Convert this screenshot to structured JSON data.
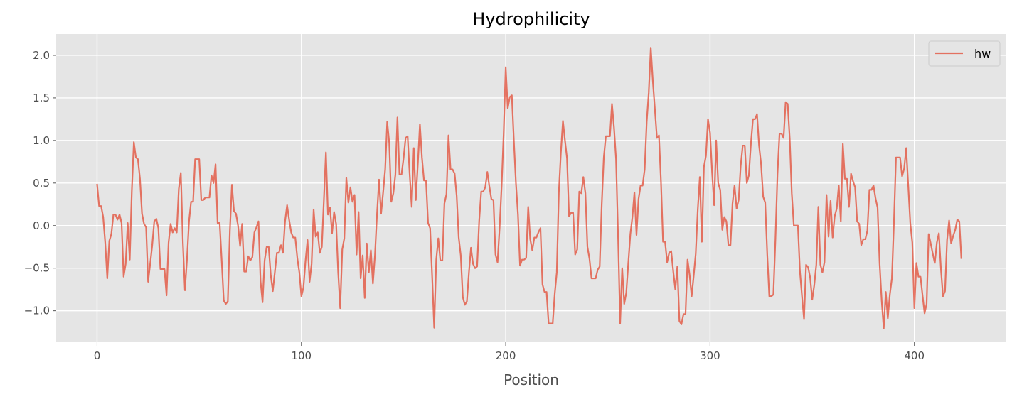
{
  "chart_data": {
    "type": "line",
    "title": "Hydrophilicity",
    "xlabel": "Position",
    "ylabel": "",
    "xlim": [
      -20,
      445
    ],
    "ylim": [
      -1.37,
      2.25
    ],
    "xticks": [
      0,
      100,
      200,
      300,
      400
    ],
    "xtick_labels": [
      "0",
      "100",
      "200",
      "300",
      "400"
    ],
    "yticks": [
      -1.0,
      -0.5,
      0.0,
      0.5,
      1.0,
      1.5,
      2.0
    ],
    "ytick_labels": [
      "−1.0",
      "−0.5",
      "0.0",
      "0.5",
      "1.0",
      "1.5",
      "2.0"
    ],
    "grid": true,
    "legend": {
      "position": "top-right",
      "entries": [
        "hw"
      ]
    },
    "colors": {
      "plot_bg": "#e5e5e5",
      "grid": "#ffffff",
      "series": "#e24a33"
    },
    "series": [
      {
        "name": "hw",
        "x_start": 0,
        "x_step": 1,
        "values": [
          0.49,
          0.23,
          0.23,
          0.1,
          -0.2,
          -0.62,
          -0.18,
          -0.1,
          0.13,
          0.13,
          0.07,
          0.13,
          0.03,
          -0.6,
          -0.45,
          0.03,
          -0.4,
          0.4,
          0.98,
          0.8,
          0.78,
          0.55,
          0.14,
          0.02,
          -0.02,
          -0.66,
          -0.45,
          -0.23,
          0.05,
          0.08,
          -0.03,
          -0.51,
          -0.51,
          -0.51,
          -0.82,
          -0.2,
          0.02,
          -0.08,
          -0.03,
          -0.08,
          0.43,
          0.62,
          -0.2,
          -0.76,
          -0.4,
          0.05,
          0.28,
          0.28,
          0.78,
          0.78,
          0.78,
          0.3,
          0.3,
          0.33,
          0.33,
          0.33,
          0.59,
          0.5,
          0.72,
          0.03,
          0.03,
          -0.41,
          -0.88,
          -0.92,
          -0.89,
          -0.06,
          0.48,
          0.17,
          0.14,
          0.0,
          -0.24,
          0.02,
          -0.54,
          -0.54,
          -0.36,
          -0.41,
          -0.37,
          -0.08,
          -0.02,
          0.05,
          -0.65,
          -0.9,
          -0.41,
          -0.25,
          -0.25,
          -0.58,
          -0.77,
          -0.55,
          -0.32,
          -0.32,
          -0.23,
          -0.32,
          0.05,
          0.24,
          0.07,
          -0.08,
          -0.14,
          -0.14,
          -0.38,
          -0.55,
          -0.83,
          -0.73,
          -0.42,
          -0.17,
          -0.66,
          -0.45,
          0.19,
          -0.13,
          -0.08,
          -0.32,
          -0.25,
          0.3,
          0.86,
          0.13,
          0.21,
          -0.09,
          0.16,
          0.02,
          -0.55,
          -0.97,
          -0.28,
          -0.15,
          0.56,
          0.27,
          0.45,
          0.28,
          0.36,
          -0.34,
          0.16,
          -0.62,
          -0.35,
          -0.85,
          -0.21,
          -0.55,
          -0.29,
          -0.68,
          -0.35,
          0.13,
          0.54,
          0.14,
          0.39,
          0.66,
          1.22,
          0.97,
          0.28,
          0.38,
          0.6,
          1.27,
          0.6,
          0.6,
          0.79,
          1.03,
          1.05,
          0.6,
          0.22,
          0.91,
          0.3,
          0.73,
          1.19,
          0.8,
          0.53,
          0.53,
          0.03,
          -0.03,
          -0.6,
          -1.2,
          -0.4,
          -0.15,
          -0.41,
          -0.41,
          0.26,
          0.37,
          1.06,
          0.66,
          0.66,
          0.61,
          0.35,
          -0.14,
          -0.35,
          -0.84,
          -0.93,
          -0.89,
          -0.55,
          -0.26,
          -0.45,
          -0.5,
          -0.48,
          0.05,
          0.4,
          0.4,
          0.45,
          0.63,
          0.46,
          0.31,
          0.3,
          -0.34,
          -0.43,
          -0.03,
          0.47,
          1.08,
          1.86,
          1.38,
          1.51,
          1.53,
          0.99,
          0.5,
          0.13,
          -0.47,
          -0.4,
          -0.4,
          -0.38,
          0.22,
          -0.16,
          -0.29,
          -0.14,
          -0.14,
          -0.08,
          -0.03,
          -0.69,
          -0.78,
          -0.78,
          -1.15,
          -1.15,
          -1.15,
          -0.8,
          -0.55,
          0.39,
          0.86,
          1.23,
          1.0,
          0.79,
          0.11,
          0.15,
          0.15,
          -0.34,
          -0.28,
          0.4,
          0.38,
          0.57,
          0.38,
          -0.25,
          -0.39,
          -0.62,
          -0.62,
          -0.62,
          -0.52,
          -0.48,
          0.25,
          0.8,
          1.05,
          1.05,
          1.05,
          1.43,
          1.15,
          0.78,
          -0.13,
          -1.15,
          -0.5,
          -0.92,
          -0.79,
          -0.44,
          -0.1,
          0.1,
          0.39,
          -0.11,
          0.31,
          0.47,
          0.47,
          0.66,
          1.22,
          1.56,
          2.09,
          1.7,
          1.37,
          1.03,
          1.06,
          0.51,
          -0.19,
          -0.19,
          -0.43,
          -0.32,
          -0.3,
          -0.54,
          -0.75,
          -0.48,
          -1.12,
          -1.16,
          -1.04,
          -1.04,
          -0.4,
          -0.58,
          -0.83,
          -0.59,
          -0.33,
          0.19,
          0.57,
          -0.19,
          0.69,
          0.82,
          1.25,
          1.09,
          0.63,
          0.24,
          1.0,
          0.5,
          0.42,
          -0.05,
          0.1,
          0.05,
          -0.23,
          -0.23,
          0.26,
          0.47,
          0.2,
          0.3,
          0.7,
          0.94,
          0.94,
          0.5,
          0.59,
          0.96,
          1.25,
          1.25,
          1.31,
          0.94,
          0.72,
          0.34,
          0.27,
          -0.34,
          -0.83,
          -0.83,
          -0.81,
          -0.16,
          0.6,
          1.08,
          1.08,
          1.03,
          1.45,
          1.43,
          1.02,
          0.38,
          0.0,
          0.0,
          0.0,
          -0.54,
          -0.83,
          -1.1,
          -0.46,
          -0.49,
          -0.61,
          -0.87,
          -0.7,
          -0.46,
          0.22,
          -0.46,
          -0.55,
          -0.43,
          0.36,
          -0.13,
          0.29,
          -0.14,
          0.11,
          0.2,
          0.47,
          0.05,
          0.96,
          0.55,
          0.55,
          0.22,
          0.61,
          0.52,
          0.45,
          0.05,
          0.02,
          -0.23,
          -0.16,
          -0.16,
          -0.06,
          0.42,
          0.42,
          0.47,
          0.32,
          0.21,
          -0.45,
          -0.88,
          -1.21,
          -0.78,
          -1.09,
          -0.81,
          -0.62,
          0.04,
          0.8,
          0.8,
          0.8,
          0.58,
          0.67,
          0.91,
          0.47,
          0.03,
          -0.2,
          -0.97,
          -0.44,
          -0.6,
          -0.6,
          -0.82,
          -1.03,
          -0.92,
          -0.1,
          -0.21,
          -0.33,
          -0.44,
          -0.2,
          -0.09,
          -0.51,
          -0.83,
          -0.77,
          -0.17,
          0.06,
          -0.21,
          -0.12,
          -0.05,
          0.07,
          0.05,
          -0.39
        ]
      }
    ]
  }
}
